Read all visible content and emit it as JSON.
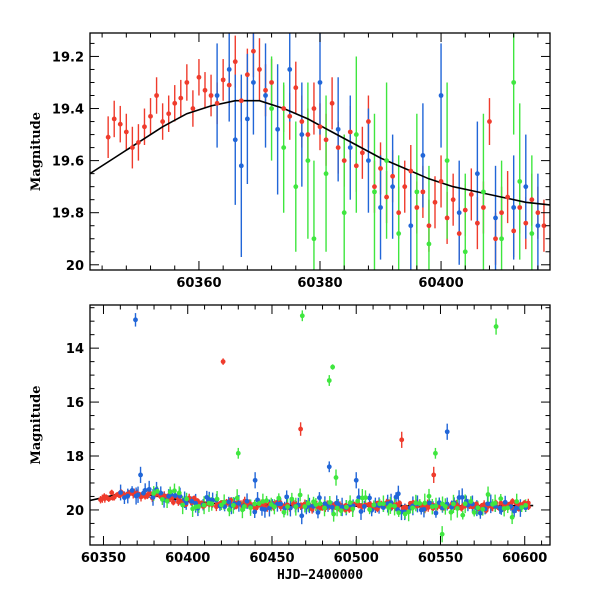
{
  "chart_data": [
    {
      "type": "scatter",
      "title": "",
      "xlabel": "",
      "ylabel": "Magnitude",
      "xlim": [
        60342,
        60418
      ],
      "ylim": [
        20.02,
        19.11
      ],
      "y_inverted": true,
      "xticks": [
        60360,
        60380,
        60400
      ],
      "yticks": [
        19.2,
        19.4,
        19.6,
        19.8,
        20
      ],
      "ytick_labels": [
        "19.2",
        "19.4",
        "19.6",
        "19.8",
        "20"
      ],
      "grid": false,
      "series": [
        {
          "color": "#ef3b2c",
          "points": [
            [
              60345,
              19.51,
              0.08
            ],
            [
              60346,
              19.44,
              0.07
            ],
            [
              60347,
              19.46,
              0.07
            ],
            [
              60348,
              19.49,
              0.07
            ],
            [
              60349,
              19.55,
              0.08
            ],
            [
              60350,
              19.53,
              0.07
            ],
            [
              60351,
              19.47,
              0.07
            ],
            [
              60352,
              19.43,
              0.07
            ],
            [
              60353,
              19.35,
              0.07
            ],
            [
              60354,
              19.45,
              0.07
            ],
            [
              60355,
              19.42,
              0.07
            ],
            [
              60356,
              19.38,
              0.07
            ],
            [
              60357,
              19.36,
              0.07
            ],
            [
              60358,
              19.3,
              0.07
            ],
            [
              60359,
              19.4,
              0.07
            ],
            [
              60360,
              19.28,
              0.07
            ],
            [
              60361,
              19.33,
              0.07
            ],
            [
              60362,
              19.35,
              0.08
            ],
            [
              60363,
              19.38,
              0.08
            ],
            [
              60364,
              19.29,
              0.08
            ],
            [
              60365,
              19.31,
              0.08
            ],
            [
              60366,
              19.22,
              0.1
            ],
            [
              60367,
              19.37,
              0.08
            ],
            [
              60368,
              19.27,
              0.1
            ],
            [
              60369,
              19.18,
              0.1
            ],
            [
              60370,
              19.25,
              0.12
            ],
            [
              60371,
              19.33,
              0.1
            ],
            [
              60372,
              19.3,
              0.09
            ],
            [
              60374,
              19.4,
              0.09
            ],
            [
              60375,
              19.43,
              0.09
            ],
            [
              60376,
              19.32,
              0.1
            ],
            [
              60377,
              19.45,
              0.1
            ],
            [
              60378,
              19.5,
              0.1
            ],
            [
              60379,
              19.4,
              0.1
            ],
            [
              60380,
              19.47,
              0.09
            ],
            [
              60381,
              19.52,
              0.1
            ],
            [
              60382,
              19.38,
              0.1
            ],
            [
              60383,
              19.55,
              0.1
            ],
            [
              60384,
              19.6,
              0.1
            ],
            [
              60385,
              19.49,
              0.1
            ],
            [
              60386,
              19.62,
              0.1
            ],
            [
              60387,
              19.57,
              0.1
            ],
            [
              60388,
              19.45,
              0.1
            ],
            [
              60389,
              19.7,
              0.1
            ],
            [
              60390,
              19.63,
              0.1
            ],
            [
              60391,
              19.74,
              0.1
            ],
            [
              60392,
              19.66,
              0.1
            ],
            [
              60393,
              19.8,
              0.1
            ],
            [
              60394,
              19.7,
              0.1
            ],
            [
              60395,
              19.64,
              0.1
            ],
            [
              60396,
              19.78,
              0.1
            ],
            [
              60397,
              19.72,
              0.1
            ],
            [
              60398,
              19.85,
              0.1
            ],
            [
              60399,
              19.76,
              0.1
            ],
            [
              60400,
              19.68,
              0.1
            ],
            [
              60401,
              19.82,
              0.1
            ],
            [
              60402,
              19.75,
              0.1
            ],
            [
              60403,
              19.88,
              0.1
            ],
            [
              60404,
              19.79,
              0.1
            ],
            [
              60405,
              19.73,
              0.1
            ],
            [
              60406,
              19.84,
              0.1
            ],
            [
              60407,
              19.78,
              0.1
            ],
            [
              60408,
              19.45,
              0.09
            ],
            [
              60409,
              19.9,
              0.1
            ],
            [
              60410,
              19.8,
              0.1
            ],
            [
              60411,
              19.74,
              0.1
            ],
            [
              60412,
              19.87,
              0.1
            ],
            [
              60413,
              19.78,
              0.1
            ],
            [
              60414,
              19.84,
              0.1
            ],
            [
              60415,
              19.75,
              0.1
            ],
            [
              60416,
              19.8,
              0.1
            ],
            [
              60417,
              19.85,
              0.1
            ]
          ]
        },
        {
          "color": "#2166d8",
          "points": [
            [
              60363,
              19.35,
              0.2
            ],
            [
              60365,
              19.25,
              0.2
            ],
            [
              60366,
              19.52,
              0.25
            ],
            [
              60367,
              19.62,
              0.35
            ],
            [
              60368,
              19.44,
              0.25
            ],
            [
              60369,
              19.3,
              0.2
            ],
            [
              60371,
              19.35,
              0.2
            ],
            [
              60373,
              19.48,
              0.25
            ],
            [
              60375,
              19.25,
              0.2
            ],
            [
              60377,
              19.5,
              0.2
            ],
            [
              60380,
              19.3,
              0.2
            ],
            [
              60383,
              19.48,
              0.2
            ],
            [
              60385,
              19.55,
              0.2
            ],
            [
              60388,
              19.6,
              0.2
            ],
            [
              60390,
              19.78,
              0.2
            ],
            [
              60392,
              19.7,
              0.2
            ],
            [
              60395,
              19.85,
              0.2
            ],
            [
              60397,
              19.58,
              0.2
            ],
            [
              60400,
              19.35,
              0.2
            ],
            [
              60403,
              19.8,
              0.2
            ],
            [
              60406,
              19.65,
              0.2
            ],
            [
              60409,
              19.82,
              0.2
            ],
            [
              60412,
              19.78,
              0.2
            ],
            [
              60414,
              19.7,
              0.2
            ],
            [
              60416,
              19.85,
              0.2
            ]
          ]
        },
        {
          "color": "#3fe63f",
          "points": [
            [
              60372,
              19.4,
              0.2
            ],
            [
              60374,
              19.55,
              0.25
            ],
            [
              60376,
              19.7,
              0.25
            ],
            [
              60378,
              19.6,
              0.3
            ],
            [
              60379,
              19.9,
              0.3
            ],
            [
              60381,
              19.65,
              0.3
            ],
            [
              60384,
              19.8,
              0.3
            ],
            [
              60386,
              19.5,
              0.3
            ],
            [
              60389,
              19.72,
              0.3
            ],
            [
              60391,
              19.6,
              0.3
            ],
            [
              60393,
              19.88,
              0.3
            ],
            [
              60396,
              19.72,
              0.3
            ],
            [
              60398,
              19.92,
              0.3
            ],
            [
              60401,
              19.6,
              0.3
            ],
            [
              60404,
              19.95,
              0.3
            ],
            [
              60407,
              19.72,
              0.3
            ],
            [
              60410,
              19.9,
              0.3
            ],
            [
              60412,
              19.3,
              0.2
            ],
            [
              60413,
              19.68,
              0.3
            ],
            [
              60415,
              19.88,
              0.3
            ]
          ]
        }
      ],
      "model_curve": {
        "color": "#000000",
        "points": [
          [
            60342,
            19.65
          ],
          [
            60346,
            19.59
          ],
          [
            60350,
            19.53
          ],
          [
            60354,
            19.47
          ],
          [
            60358,
            19.42
          ],
          [
            60362,
            19.39
          ],
          [
            60366,
            19.37
          ],
          [
            60370,
            19.37
          ],
          [
            60374,
            19.4
          ],
          [
            60378,
            19.44
          ],
          [
            60382,
            19.49
          ],
          [
            60386,
            19.54
          ],
          [
            60390,
            19.59
          ],
          [
            60394,
            19.63
          ],
          [
            60398,
            19.67
          ],
          [
            60402,
            19.7
          ],
          [
            60406,
            19.72
          ],
          [
            60410,
            19.74
          ],
          [
            60414,
            19.76
          ],
          [
            60418,
            19.77
          ]
        ]
      }
    },
    {
      "type": "scatter",
      "title": "",
      "xlabel": "HJD−2400000",
      "ylabel": "Magnitude",
      "xlim": [
        60342,
        60615
      ],
      "ylim": [
        21.3,
        12.4
      ],
      "y_inverted": true,
      "xticks": [
        60350,
        60400,
        60450,
        60500,
        60550,
        60600
      ],
      "yticks": [
        14,
        16,
        18,
        20
      ],
      "ytick_labels": [
        "14",
        "16",
        "18",
        "20"
      ],
      "grid": false,
      "series": [
        {
          "color": "#ef3b2c",
          "outliers": [
            [
              60421,
              14.5,
              0.12
            ],
            [
              60467,
              17.0,
              0.25
            ],
            [
              60527,
              17.4,
              0.3
            ],
            [
              60546,
              18.7,
              0.3
            ]
          ],
          "band": {
            "x_start": 60348,
            "x_end": 60603,
            "scatter": 0.2,
            "count": 240,
            "err": 0.12
          }
        },
        {
          "color": "#2166d8",
          "outliers": [
            [
              60369,
              12.95,
              0.25
            ],
            [
              60484,
              18.4,
              0.2
            ],
            [
              60554,
              17.1,
              0.3
            ],
            [
              60372,
              18.7,
              0.3
            ],
            [
              60440,
              18.9,
              0.3
            ],
            [
              60500,
              18.9,
              0.3
            ],
            [
              60525,
              19.4,
              0.3
            ]
          ],
          "band": {
            "x_start": 60360,
            "x_end": 60600,
            "scatter": 0.45,
            "count": 110,
            "err": 0.25
          }
        },
        {
          "color": "#3fe63f",
          "outliers": [
            [
              60468,
              12.8,
              0.2
            ],
            [
              60484,
              15.2,
              0.2
            ],
            [
              60486,
              14.7,
              0.1
            ],
            [
              60583,
              13.2,
              0.3
            ],
            [
              60430,
              17.9,
              0.2
            ],
            [
              60547,
              17.9,
              0.2
            ],
            [
              60551,
              20.9,
              0.3
            ],
            [
              60488,
              18.8,
              0.3
            ]
          ],
          "band": {
            "x_start": 60380,
            "x_end": 60600,
            "scatter": 0.5,
            "count": 90,
            "err": 0.25
          }
        }
      ],
      "model_curve": {
        "color": "#000000",
        "points": [
          [
            60342,
            19.65
          ],
          [
            60355,
            19.47
          ],
          [
            60368,
            19.37
          ],
          [
            60385,
            19.52
          ],
          [
            60400,
            19.68
          ],
          [
            60418,
            19.77
          ],
          [
            60440,
            19.82
          ],
          [
            60470,
            19.85
          ],
          [
            60500,
            19.86
          ],
          [
            60550,
            19.85
          ],
          [
            60605,
            19.84
          ]
        ]
      }
    }
  ]
}
